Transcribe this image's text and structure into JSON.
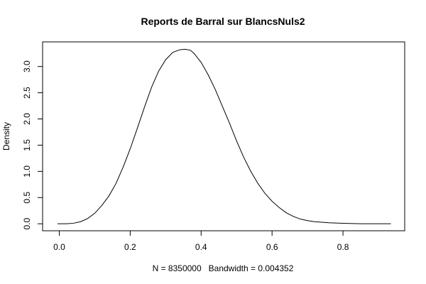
{
  "chart_data": {
    "type": "line",
    "title": "Reports de Barral sur BlancsNuls2",
    "xlabel": "N = 8350000   Bandwidth = 0.004352",
    "ylabel": "Density",
    "xlim": [
      -0.047,
      0.974
    ],
    "ylim": [
      -0.133,
      3.47
    ],
    "x_ticks": [
      0.0,
      0.2,
      0.4,
      0.6,
      0.8
    ],
    "x_tick_labels": [
      "0.0",
      "0.2",
      "0.4",
      "0.6",
      "0.8"
    ],
    "y_ticks": [
      0.0,
      0.5,
      1.0,
      1.5,
      2.0,
      2.5,
      3.0
    ],
    "y_tick_labels": [
      "0.0",
      "0.5",
      "1.0",
      "1.5",
      "2.0",
      "2.5",
      "3.0"
    ],
    "grid": false,
    "legend": null,
    "series": [
      {
        "x": [
          -0.005,
          0.02,
          0.04,
          0.06,
          0.08,
          0.1,
          0.12,
          0.14,
          0.16,
          0.18,
          0.2,
          0.22,
          0.24,
          0.26,
          0.28,
          0.3,
          0.32,
          0.34,
          0.355,
          0.37,
          0.38,
          0.4,
          0.42,
          0.44,
          0.46,
          0.48,
          0.5,
          0.52,
          0.54,
          0.56,
          0.58,
          0.6,
          0.62,
          0.64,
          0.66,
          0.68,
          0.7,
          0.72,
          0.74,
          0.76,
          0.8,
          0.85,
          0.9,
          0.935
        ],
        "y": [
          0.0,
          0.0,
          0.01,
          0.04,
          0.1,
          0.2,
          0.35,
          0.53,
          0.77,
          1.08,
          1.43,
          1.82,
          2.22,
          2.6,
          2.91,
          3.13,
          3.27,
          3.32,
          3.33,
          3.31,
          3.25,
          3.08,
          2.84,
          2.56,
          2.24,
          1.92,
          1.58,
          1.27,
          1.0,
          0.77,
          0.58,
          0.43,
          0.31,
          0.21,
          0.14,
          0.09,
          0.06,
          0.04,
          0.03,
          0.02,
          0.01,
          0.0,
          0.0,
          0.0
        ],
        "color": "#000000"
      }
    ]
  }
}
